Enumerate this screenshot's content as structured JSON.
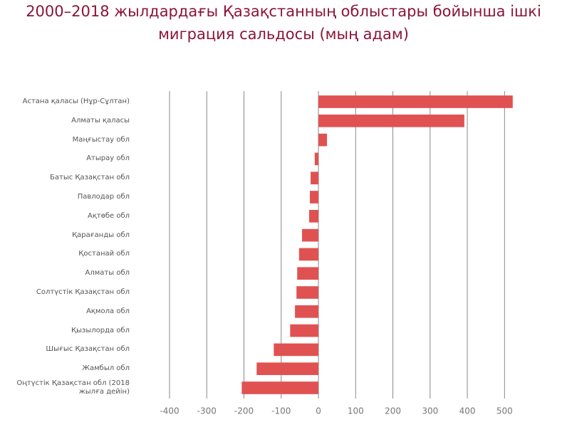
{
  "chart_data": {
    "type": "barh",
    "title": "2000–2018 жылдардағы Қазақстанның облыстары бойынша ішкі миграция сальдосы (мың адам)",
    "categories": [
      "Астана қаласы (Нұр-Сұлтан)",
      "Алматы қаласы",
      "Маңғыстау обл",
      "Атырау обл",
      "Батыс Қазақстан обл",
      "Павлодар обл",
      "Ақтөбе обл",
      "Қарағанды обл",
      "Қостанай обл",
      "Алматы обл",
      "Солтүстік Қазақстан обл",
      "Ақмола обл",
      "Қызылорда обл",
      "Шығыс Қазақстан обл",
      "Жамбыл обл",
      "Оңтүстік Қазақстан обл (2018 жылға дейін)"
    ],
    "values": [
      522,
      392,
      23,
      -10,
      -21,
      -23,
      -25,
      -44,
      -52,
      -57,
      -59,
      -63,
      -76,
      -120,
      -166,
      -206
    ],
    "color": "#e05252",
    "xlim": [
      -400,
      530
    ],
    "xticks": [
      -400,
      -300,
      -200,
      -100,
      0,
      100,
      200,
      300,
      400,
      500
    ],
    "grid": true
  }
}
